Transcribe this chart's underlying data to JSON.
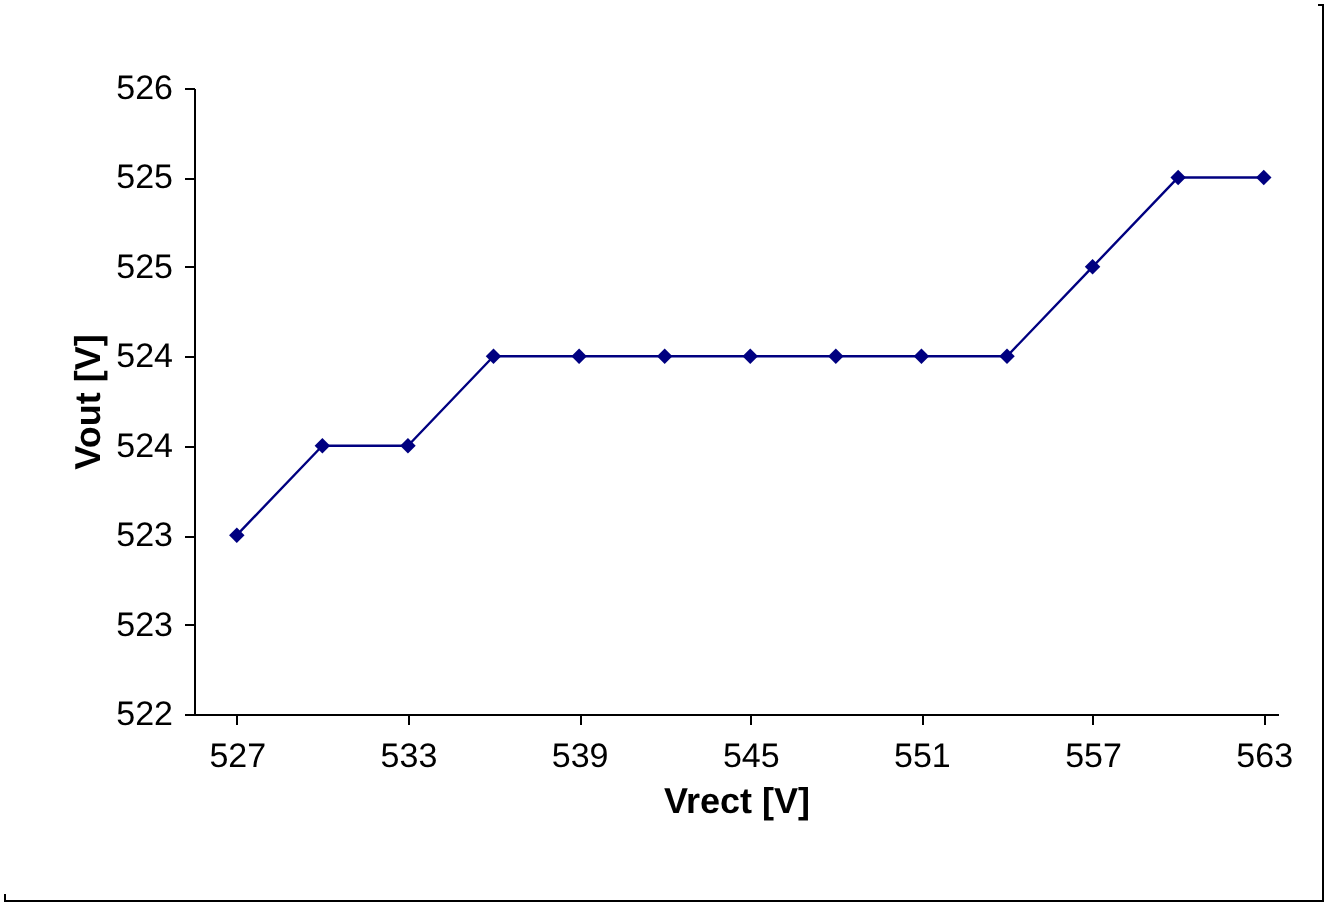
{
  "chart_data": {
    "type": "line",
    "xlabel": "Vrect [V]",
    "ylabel": "Vout [V]",
    "x": [
      527,
      530,
      533,
      536,
      539,
      542,
      545,
      548,
      551,
      554,
      557,
      560,
      563
    ],
    "series": [
      {
        "color": "#000080",
        "values": [
          523,
          523.5,
          523.5,
          524,
          524,
          524,
          524,
          524,
          524,
          524,
          524.5,
          525,
          525
        ]
      }
    ],
    "xlim": [
      525.5,
      563.5
    ],
    "xticks": [
      527,
      533,
      539,
      545,
      551,
      557,
      563
    ],
    "ylim": [
      522,
      525.5
    ],
    "yticks": [
      522,
      {
        "value": 522.5,
        "label": "523"
      },
      523,
      {
        "value": 523.5,
        "label": "524"
      },
      524,
      {
        "value": 524.5,
        "label": "525"
      },
      525,
      {
        "value": 525.5,
        "label": "526"
      }
    ],
    "marker": "diamond",
    "grid": false
  }
}
